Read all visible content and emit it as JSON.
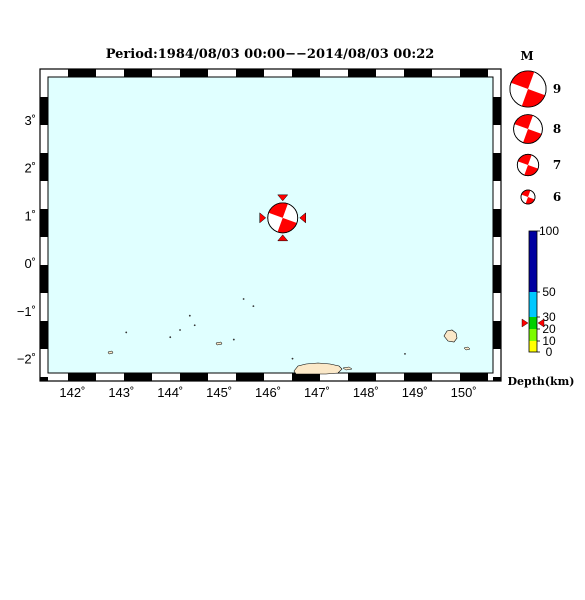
{
  "title": "Period:1984/08/03 00:00−−2014/08/03 00:22",
  "map": {
    "lon_range": [
      141.5,
      150.6
    ],
    "lat_range": [
      -2.3,
      3.9
    ],
    "lon_ticks": [
      142,
      143,
      144,
      145,
      146,
      147,
      148,
      149,
      150
    ],
    "lat_ticks": [
      3,
      2,
      1,
      0,
      -1,
      -2
    ],
    "lon_labels": [
      "142˚",
      "143˚",
      "144˚",
      "145˚",
      "146˚",
      "147˚",
      "148˚",
      "149˚",
      "150˚"
    ],
    "lat_labels": [
      "3˚",
      "2˚",
      "1˚",
      "0˚",
      "−1˚",
      "−2˚"
    ],
    "ocean_color": "#e0ffff",
    "land_color": "#fbe8c8"
  },
  "event": {
    "lon": 146.3,
    "lat": 0.95,
    "depth_km": 25,
    "color": "#ff0000"
  },
  "magnitude_legend": {
    "title": "M",
    "items": [
      {
        "label": "9",
        "mag": 9
      },
      {
        "label": "8",
        "mag": 8
      },
      {
        "label": "7",
        "mag": 7
      },
      {
        "label": "6",
        "mag": 6
      }
    ]
  },
  "depth_scale": {
    "title": "Depth(km)",
    "labels": [
      "100",
      "50",
      "30",
      "20",
      "10",
      "0"
    ],
    "segments": [
      {
        "from": 0,
        "to": 10,
        "color": "#ffff00"
      },
      {
        "from": 10,
        "to": 20,
        "color": "#7cfc00"
      },
      {
        "from": 20,
        "to": 30,
        "color": "#00d000"
      },
      {
        "from": 30,
        "to": 50,
        "color": "#00c8ff"
      },
      {
        "from": 50,
        "to": 100,
        "color": "#0000a0"
      }
    ],
    "marker_depth": 25
  }
}
